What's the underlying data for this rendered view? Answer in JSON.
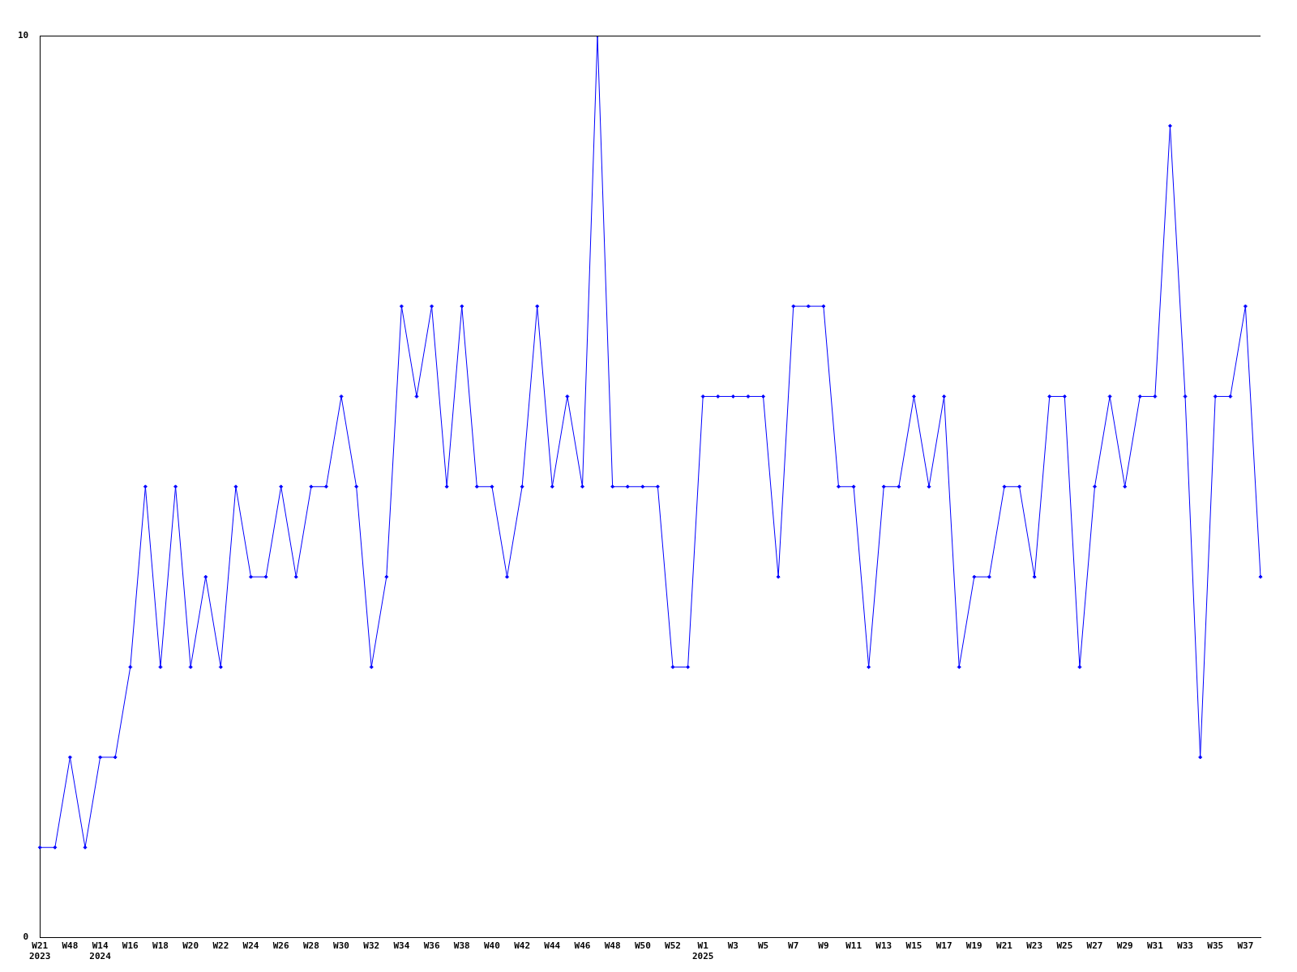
{
  "chart_data": {
    "type": "line",
    "categories": [
      "W21\n2023",
      null,
      "W48",
      null,
      "W14\n2024",
      null,
      "W16",
      null,
      "W18",
      null,
      "W20",
      null,
      "W22",
      null,
      "W24",
      null,
      "W26",
      null,
      "W28",
      null,
      "W30",
      null,
      "W32",
      null,
      "W34",
      null,
      "W36",
      null,
      "W38",
      null,
      "W40",
      null,
      "W42",
      null,
      "W44",
      null,
      "W46",
      null,
      "W48",
      null,
      "W50",
      null,
      "W52",
      null,
      "W1\n2025",
      null,
      "W3",
      null,
      "W5",
      null,
      "W7",
      null,
      "W9",
      null,
      "W11",
      null,
      "W13",
      null,
      "W15",
      null,
      "W17",
      null,
      "W19",
      null,
      "W21",
      null,
      "W23",
      null,
      "W25",
      null,
      "W27",
      null,
      "W29",
      null,
      "W31",
      null,
      "W33",
      null,
      "W35",
      null,
      "W37",
      null
    ],
    "series": [
      {
        "color": "#0000ff",
        "values": [
          1,
          1,
          2,
          1,
          2,
          2,
          3,
          5,
          3,
          5,
          3,
          4,
          3,
          5,
          4,
          4,
          5,
          4,
          5,
          5,
          6,
          5,
          3,
          4,
          7,
          6,
          7,
          5,
          7,
          5,
          5,
          4,
          5,
          7,
          5,
          6,
          5,
          10,
          5,
          5,
          5,
          5,
          3,
          3,
          6,
          6,
          6,
          6,
          6,
          4,
          7,
          7,
          7,
          5,
          5,
          3,
          5,
          5,
          6,
          5,
          6,
          3,
          4,
          4,
          5,
          5,
          4,
          6,
          6,
          3,
          5,
          6,
          5,
          6,
          6,
          9,
          6,
          2,
          6,
          6,
          7,
          4
        ]
      }
    ],
    "ylim": [
      0,
      10
    ],
    "yticks": [
      0,
      10
    ],
    "grid": false,
    "legend": false,
    "marker": "diamond",
    "line_style": "solid"
  }
}
